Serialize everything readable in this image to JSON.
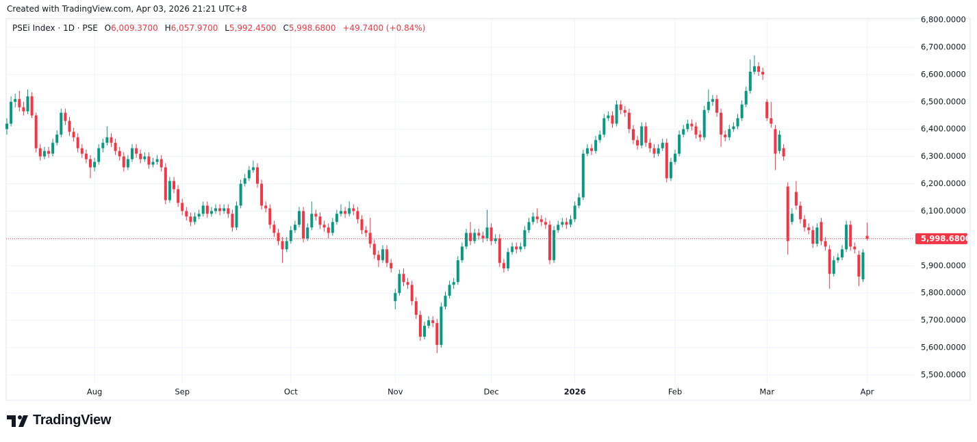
{
  "header": {
    "created": "Created with TradingView.com, Apr 03, 2026 21:21 UTC+8"
  },
  "footer": {
    "brand": "TradingView"
  },
  "chart_data": {
    "type": "candlestick",
    "title": "PSEi Index · 1D · PSE",
    "ohlc_keys": [
      "O",
      "H",
      "L",
      "C"
    ],
    "last_labels": {
      "open": "6,009.3700",
      "high": "6,057.9700",
      "low": "5,992.4500",
      "close": "5,998.6800"
    },
    "change": "+49.7400 (+0.84%)",
    "up_color": "#089981",
    "down_color": "#f23645",
    "grid": true,
    "ylim": [
      5470,
      6805
    ],
    "yticks": [
      {
        "value": 5500,
        "label": "5,500.0000"
      },
      {
        "value": 5600,
        "label": "5,600.0000"
      },
      {
        "value": 5700,
        "label": "5,700.0000"
      },
      {
        "value": 5800,
        "label": "5,800.0000"
      },
      {
        "value": 5900,
        "label": "5,900.0000"
      },
      {
        "value": 6000,
        "label": "6,000.0000"
      },
      {
        "value": 6100,
        "label": "6,100.0000"
      },
      {
        "value": 6200,
        "label": "6,200.0000"
      },
      {
        "value": 6300,
        "label": "6,300.0000"
      },
      {
        "value": 6400,
        "label": "6,400.0000"
      },
      {
        "value": 6500,
        "label": "6,500.0000"
      },
      {
        "value": 6600,
        "label": "6,600.0000"
      },
      {
        "value": 6700,
        "label": "6,700.0000"
      },
      {
        "value": 6800,
        "label": "6,800.0000"
      }
    ],
    "categories": [
      null,
      null,
      null,
      null,
      null,
      null,
      null,
      null,
      null,
      null,
      null,
      null,
      null,
      null,
      null,
      null,
      null,
      null,
      null,
      null,
      null,
      "Aug",
      null,
      null,
      null,
      null,
      null,
      null,
      null,
      null,
      null,
      null,
      null,
      null,
      null,
      null,
      null,
      null,
      null,
      null,
      null,
      null,
      "Sep",
      null,
      null,
      null,
      null,
      null,
      null,
      null,
      null,
      null,
      null,
      null,
      null,
      null,
      null,
      null,
      null,
      null,
      null,
      null,
      null,
      null,
      null,
      null,
      null,
      null,
      "Oct",
      null,
      null,
      null,
      null,
      null,
      null,
      null,
      null,
      null,
      null,
      null,
      null,
      null,
      null,
      null,
      null,
      null,
      null,
      null,
      null,
      null,
      null,
      null,
      null,
      "Nov",
      null,
      null,
      null,
      null,
      null,
      null,
      null,
      null,
      null,
      null,
      null,
      null,
      null,
      null,
      null,
      null,
      null,
      null,
      null,
      null,
      null,
      null,
      "Dec",
      null,
      null,
      null,
      null,
      null,
      null,
      null,
      null,
      null,
      null,
      null,
      null,
      null,
      null,
      null,
      null,
      null,
      null,
      null,
      "2026",
      null,
      null,
      null,
      null,
      null,
      null,
      null,
      null,
      null,
      null,
      null,
      null,
      null,
      null,
      null,
      null,
      null,
      null,
      null,
      null,
      null,
      null,
      null,
      "Feb",
      null,
      null,
      null,
      null,
      null,
      null,
      null,
      null,
      null,
      null,
      null,
      null,
      null,
      null,
      null,
      null,
      null,
      null,
      null,
      null,
      null,
      "Mar",
      null,
      null,
      null,
      null,
      null,
      null,
      null,
      null,
      null,
      null,
      null,
      null,
      null,
      null,
      null,
      null,
      null,
      null,
      null,
      null,
      null,
      null,
      null,
      "Apr"
    ],
    "ohlc": [
      [
        6400,
        6440,
        6380,
        6420
      ],
      [
        6420,
        6520,
        6410,
        6500
      ],
      [
        6500,
        6530,
        6480,
        6510
      ],
      [
        6510,
        6540,
        6465,
        6480
      ],
      [
        6480,
        6500,
        6450,
        6465
      ],
      [
        6465,
        6545,
        6455,
        6520
      ],
      [
        6520,
        6535,
        6440,
        6450
      ],
      [
        6450,
        6460,
        6315,
        6330
      ],
      [
        6330,
        6345,
        6285,
        6300
      ],
      [
        6300,
        6335,
        6290,
        6320
      ],
      [
        6320,
        6335,
        6295,
        6310
      ],
      [
        6310,
        6365,
        6300,
        6350
      ],
      [
        6350,
        6395,
        6340,
        6380
      ],
      [
        6380,
        6475,
        6370,
        6460
      ],
      [
        6460,
        6475,
        6415,
        6430
      ],
      [
        6430,
        6445,
        6375,
        6390
      ],
      [
        6390,
        6405,
        6355,
        6370
      ],
      [
        6370,
        6385,
        6315,
        6330
      ],
      [
        6330,
        6345,
        6295,
        6310
      ],
      [
        6310,
        6325,
        6275,
        6290
      ],
      [
        6290,
        6305,
        6220,
        6260
      ],
      [
        6260,
        6295,
        6245,
        6280
      ],
      [
        6280,
        6345,
        6270,
        6330
      ],
      [
        6330,
        6365,
        6315,
        6350
      ],
      [
        6350,
        6410,
        6340,
        6370
      ],
      [
        6370,
        6385,
        6335,
        6350
      ],
      [
        6350,
        6365,
        6305,
        6320
      ],
      [
        6320,
        6335,
        6285,
        6300
      ],
      [
        6300,
        6315,
        6245,
        6260
      ],
      [
        6260,
        6305,
        6250,
        6290
      ],
      [
        6290,
        6345,
        6280,
        6330
      ],
      [
        6330,
        6345,
        6295,
        6310
      ],
      [
        6310,
        6325,
        6275,
        6290
      ],
      [
        6290,
        6315,
        6280,
        6300
      ],
      [
        6300,
        6315,
        6255,
        6270
      ],
      [
        6270,
        6295,
        6260,
        6280
      ],
      [
        6280,
        6305,
        6270,
        6290
      ],
      [
        6290,
        6305,
        6245,
        6260
      ],
      [
        6260,
        6275,
        6125,
        6140
      ],
      [
        6140,
        6225,
        6130,
        6210
      ],
      [
        6210,
        6225,
        6165,
        6180
      ],
      [
        6180,
        6195,
        6115,
        6130
      ],
      [
        6130,
        6145,
        6085,
        6100
      ],
      [
        6100,
        6115,
        6065,
        6080
      ],
      [
        6080,
        6095,
        6045,
        6060
      ],
      [
        6060,
        6095,
        6050,
        6080
      ],
      [
        6080,
        6105,
        6070,
        6090
      ],
      [
        6090,
        6135,
        6080,
        6120
      ],
      [
        6120,
        6135,
        6075,
        6090
      ],
      [
        6090,
        6115,
        6080,
        6100
      ],
      [
        6100,
        6125,
        6090,
        6110
      ],
      [
        6110,
        6125,
        6085,
        6100
      ],
      [
        6100,
        6125,
        6090,
        6110
      ],
      [
        6110,
        6125,
        6075,
        6090
      ],
      [
        6090,
        6105,
        6025,
        6040
      ],
      [
        6040,
        6135,
        6030,
        6120
      ],
      [
        6120,
        6215,
        6110,
        6200
      ],
      [
        6200,
        6235,
        6190,
        6220
      ],
      [
        6220,
        6265,
        6210,
        6250
      ],
      [
        6250,
        6285,
        6240,
        6260
      ],
      [
        6260,
        6275,
        6185,
        6200
      ],
      [
        6200,
        6215,
        6105,
        6120
      ],
      [
        6120,
        6135,
        6095,
        6110
      ],
      [
        6110,
        6125,
        6035,
        6050
      ],
      [
        6050,
        6065,
        6005,
        6020
      ],
      [
        6020,
        6035,
        5975,
        5990
      ],
      [
        5990,
        6005,
        5910,
        5960
      ],
      [
        5960,
        6005,
        5950,
        5990
      ],
      [
        5990,
        6045,
        5980,
        6030
      ],
      [
        6030,
        6065,
        6020,
        6050
      ],
      [
        6050,
        6115,
        6040,
        6100
      ],
      [
        6100,
        6115,
        5985,
        6000
      ],
      [
        6000,
        6055,
        5990,
        6040
      ],
      [
        6040,
        6135,
        6030,
        6090
      ],
      [
        6090,
        6105,
        6065,
        6080
      ],
      [
        6080,
        6095,
        6035,
        6050
      ],
      [
        6050,
        6065,
        6025,
        6040
      ],
      [
        6040,
        6055,
        6000,
        6020
      ],
      [
        6020,
        6075,
        6010,
        6060
      ],
      [
        6060,
        6105,
        6050,
        6090
      ],
      [
        6090,
        6125,
        6080,
        6100
      ],
      [
        6100,
        6115,
        6075,
        6090
      ],
      [
        6090,
        6135,
        6080,
        6110
      ],
      [
        6110,
        6125,
        6085,
        6100
      ],
      [
        6100,
        6115,
        6055,
        6070
      ],
      [
        6070,
        6085,
        6015,
        6030
      ],
      [
        6030,
        6045,
        6005,
        6020
      ],
      [
        6020,
        6075,
        5965,
        5980
      ],
      [
        5980,
        5995,
        5925,
        5940
      ],
      [
        5940,
        5955,
        5895,
        5920
      ],
      [
        5920,
        5975,
        5910,
        5960
      ],
      [
        5960,
        5975,
        5895,
        5910
      ],
      [
        5910,
        5925,
        5875,
        5890
      ],
      [
        5770,
        5815,
        5740,
        5800
      ],
      [
        5800,
        5885,
        5790,
        5870
      ],
      [
        5870,
        5890,
        5825,
        5840
      ],
      [
        5840,
        5855,
        5815,
        5830
      ],
      [
        5830,
        5845,
        5755,
        5770
      ],
      [
        5770,
        5785,
        5705,
        5720
      ],
      [
        5720,
        5735,
        5625,
        5640
      ],
      [
        5640,
        5695,
        5630,
        5680
      ],
      [
        5680,
        5715,
        5670,
        5700
      ],
      [
        5700,
        5715,
        5675,
        5690
      ],
      [
        5690,
        5705,
        5580,
        5610
      ],
      [
        5610,
        5765,
        5600,
        5750
      ],
      [
        5750,
        5805,
        5740,
        5790
      ],
      [
        5790,
        5845,
        5780,
        5830
      ],
      [
        5830,
        5855,
        5815,
        5840
      ],
      [
        5840,
        5935,
        5830,
        5920
      ],
      [
        5920,
        5985,
        5910,
        5970
      ],
      [
        5970,
        6035,
        5960,
        6020
      ],
      [
        6020,
        6060,
        5975,
        5990
      ],
      [
        5990,
        6035,
        5980,
        6020
      ],
      [
        6020,
        6035,
        5995,
        6010
      ],
      [
        6010,
        6025,
        5985,
        6000
      ],
      [
        6000,
        6105,
        5990,
        6040
      ],
      [
        6040,
        6055,
        5975,
        5990
      ],
      [
        5990,
        6015,
        5980,
        6000
      ],
      [
        6000,
        6015,
        5895,
        5910
      ],
      [
        5910,
        5925,
        5875,
        5890
      ],
      [
        5890,
        5965,
        5880,
        5950
      ],
      [
        5950,
        5985,
        5940,
        5970
      ],
      [
        5970,
        5985,
        5945,
        5960
      ],
      [
        5960,
        5985,
        5950,
        5970
      ],
      [
        5970,
        6045,
        5960,
        6030
      ],
      [
        6030,
        6075,
        6020,
        6060
      ],
      [
        6060,
        6095,
        6050,
        6080
      ],
      [
        6080,
        6110,
        6055,
        6070
      ],
      [
        6070,
        6085,
        6045,
        6060
      ],
      [
        6060,
        6075,
        6035,
        6050
      ],
      [
        6050,
        6065,
        5905,
        5920
      ],
      [
        5920,
        6045,
        5910,
        6030
      ],
      [
        6030,
        6065,
        6020,
        6050
      ],
      [
        6050,
        6075,
        6040,
        6060
      ],
      [
        6060,
        6075,
        6035,
        6050
      ],
      [
        6050,
        6085,
        6040,
        6070
      ],
      [
        6070,
        6135,
        6060,
        6120
      ],
      [
        6120,
        6165,
        6110,
        6150
      ],
      [
        6150,
        6325,
        6140,
        6310
      ],
      [
        6310,
        6345,
        6300,
        6330
      ],
      [
        6330,
        6345,
        6305,
        6320
      ],
      [
        6320,
        6375,
        6310,
        6360
      ],
      [
        6360,
        6395,
        6350,
        6380
      ],
      [
        6380,
        6455,
        6370,
        6440
      ],
      [
        6440,
        6465,
        6430,
        6450
      ],
      [
        6450,
        6465,
        6405,
        6420
      ],
      [
        6420,
        6505,
        6410,
        6490
      ],
      [
        6490,
        6505,
        6455,
        6470
      ],
      [
        6470,
        6485,
        6445,
        6460
      ],
      [
        6460,
        6475,
        6385,
        6400
      ],
      [
        6400,
        6415,
        6345,
        6360
      ],
      [
        6360,
        6375,
        6325,
        6340
      ],
      [
        6340,
        6425,
        6330,
        6410
      ],
      [
        6410,
        6425,
        6335,
        6350
      ],
      [
        6350,
        6365,
        6315,
        6330
      ],
      [
        6330,
        6345,
        6295,
        6310
      ],
      [
        6310,
        6345,
        6300,
        6330
      ],
      [
        6330,
        6365,
        6320,
        6350
      ],
      [
        6350,
        6365,
        6205,
        6220
      ],
      [
        6220,
        6295,
        6210,
        6280
      ],
      [
        6280,
        6325,
        6270,
        6310
      ],
      [
        6310,
        6395,
        6300,
        6380
      ],
      [
        6380,
        6415,
        6370,
        6400
      ],
      [
        6400,
        6435,
        6390,
        6420
      ],
      [
        6420,
        6435,
        6395,
        6410
      ],
      [
        6410,
        6425,
        6365,
        6380
      ],
      [
        6380,
        6395,
        6355,
        6370
      ],
      [
        6370,
        6485,
        6360,
        6470
      ],
      [
        6470,
        6545,
        6460,
        6500
      ],
      [
        6500,
        6525,
        6485,
        6510
      ],
      [
        6510,
        6525,
        6445,
        6460
      ],
      [
        6460,
        6475,
        6335,
        6380
      ],
      [
        6380,
        6395,
        6355,
        6370
      ],
      [
        6370,
        6415,
        6360,
        6400
      ],
      [
        6400,
        6425,
        6390,
        6410
      ],
      [
        6410,
        6455,
        6400,
        6440
      ],
      [
        6440,
        6505,
        6430,
        6490
      ],
      [
        6490,
        6555,
        6480,
        6540
      ],
      [
        6540,
        6655,
        6530,
        6610
      ],
      [
        6610,
        6670,
        6600,
        6630
      ],
      [
        6630,
        6645,
        6595,
        6610
      ],
      [
        6610,
        6625,
        6580,
        6600
      ],
      [
        6500,
        6510,
        6430,
        6440
      ],
      [
        6440,
        6500,
        6405,
        6420
      ],
      [
        6400,
        6415,
        6250,
        6310
      ],
      [
        6320,
        6395,
        6310,
        6380
      ],
      [
        6330,
        6345,
        6285,
        6300
      ],
      [
        6190,
        6205,
        5940,
        5990
      ],
      [
        6060,
        6110,
        6050,
        6090
      ],
      [
        6170,
        6210,
        6105,
        6120
      ],
      [
        6120,
        6135,
        6055,
        6070
      ],
      [
        6070,
        6085,
        6025,
        6040
      ],
      [
        6040,
        6055,
        6015,
        6030
      ],
      [
        6030,
        6045,
        5965,
        5980
      ],
      [
        5980,
        6055,
        5970,
        6040
      ],
      [
        6060,
        6075,
        5975,
        5990
      ],
      [
        5990,
        6005,
        5955,
        5970
      ],
      [
        5960,
        5975,
        5815,
        5870
      ],
      [
        5870,
        5935,
        5860,
        5920
      ],
      [
        5920,
        5945,
        5910,
        5930
      ],
      [
        5930,
        5975,
        5920,
        5960
      ],
      [
        5960,
        6065,
        5950,
        6050
      ],
      [
        6050,
        6065,
        5955,
        5970
      ],
      [
        5970,
        5985,
        5945,
        5960
      ],
      [
        5940,
        5955,
        5825,
        5860
      ],
      [
        5850,
        5960,
        5840,
        5948.94
      ],
      [
        6009.37,
        6057.97,
        5992.45,
        5998.68
      ]
    ]
  }
}
